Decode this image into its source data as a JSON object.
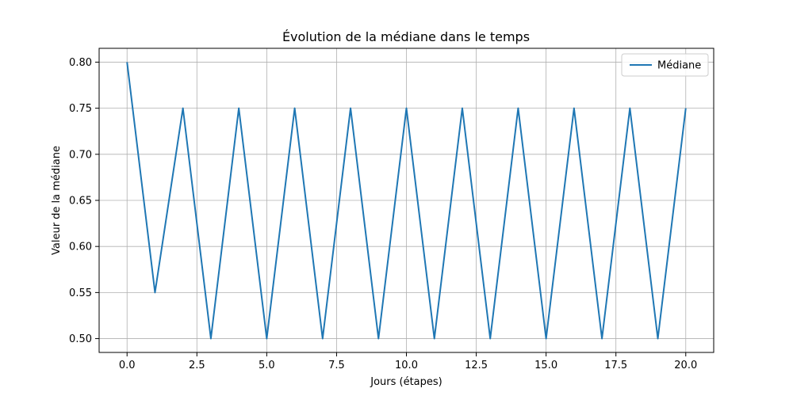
{
  "chart_data": {
    "type": "line",
    "title": "Évolution de la médiane dans le temps",
    "xlabel": "Jours (étapes)",
    "ylabel": "Valeur de la médiane",
    "xlim": [
      -1,
      21
    ],
    "ylim": [
      0.485,
      0.815
    ],
    "xticks": [
      0.0,
      2.5,
      5.0,
      7.5,
      10.0,
      12.5,
      15.0,
      17.5,
      20.0
    ],
    "xtick_labels": [
      "0.0",
      "2.5",
      "5.0",
      "7.5",
      "10.0",
      "12.5",
      "15.0",
      "17.5",
      "20.0"
    ],
    "yticks": [
      0.5,
      0.55,
      0.6,
      0.65,
      0.7,
      0.75,
      0.8
    ],
    "ytick_labels": [
      "0.50",
      "0.55",
      "0.60",
      "0.65",
      "0.70",
      "0.75",
      "0.80"
    ],
    "grid": true,
    "legend_position": "top-right",
    "series": [
      {
        "name": "Médiane",
        "color": "#1f77b4",
        "x": [
          0,
          1,
          2,
          3,
          4,
          5,
          6,
          7,
          8,
          9,
          10,
          11,
          12,
          13,
          14,
          15,
          16,
          17,
          18,
          19,
          20
        ],
        "y": [
          0.8,
          0.55,
          0.75,
          0.5,
          0.75,
          0.5,
          0.75,
          0.5,
          0.75,
          0.5,
          0.75,
          0.5,
          0.75,
          0.5,
          0.75,
          0.5,
          0.75,
          0.5,
          0.75,
          0.5,
          0.75
        ]
      }
    ]
  }
}
